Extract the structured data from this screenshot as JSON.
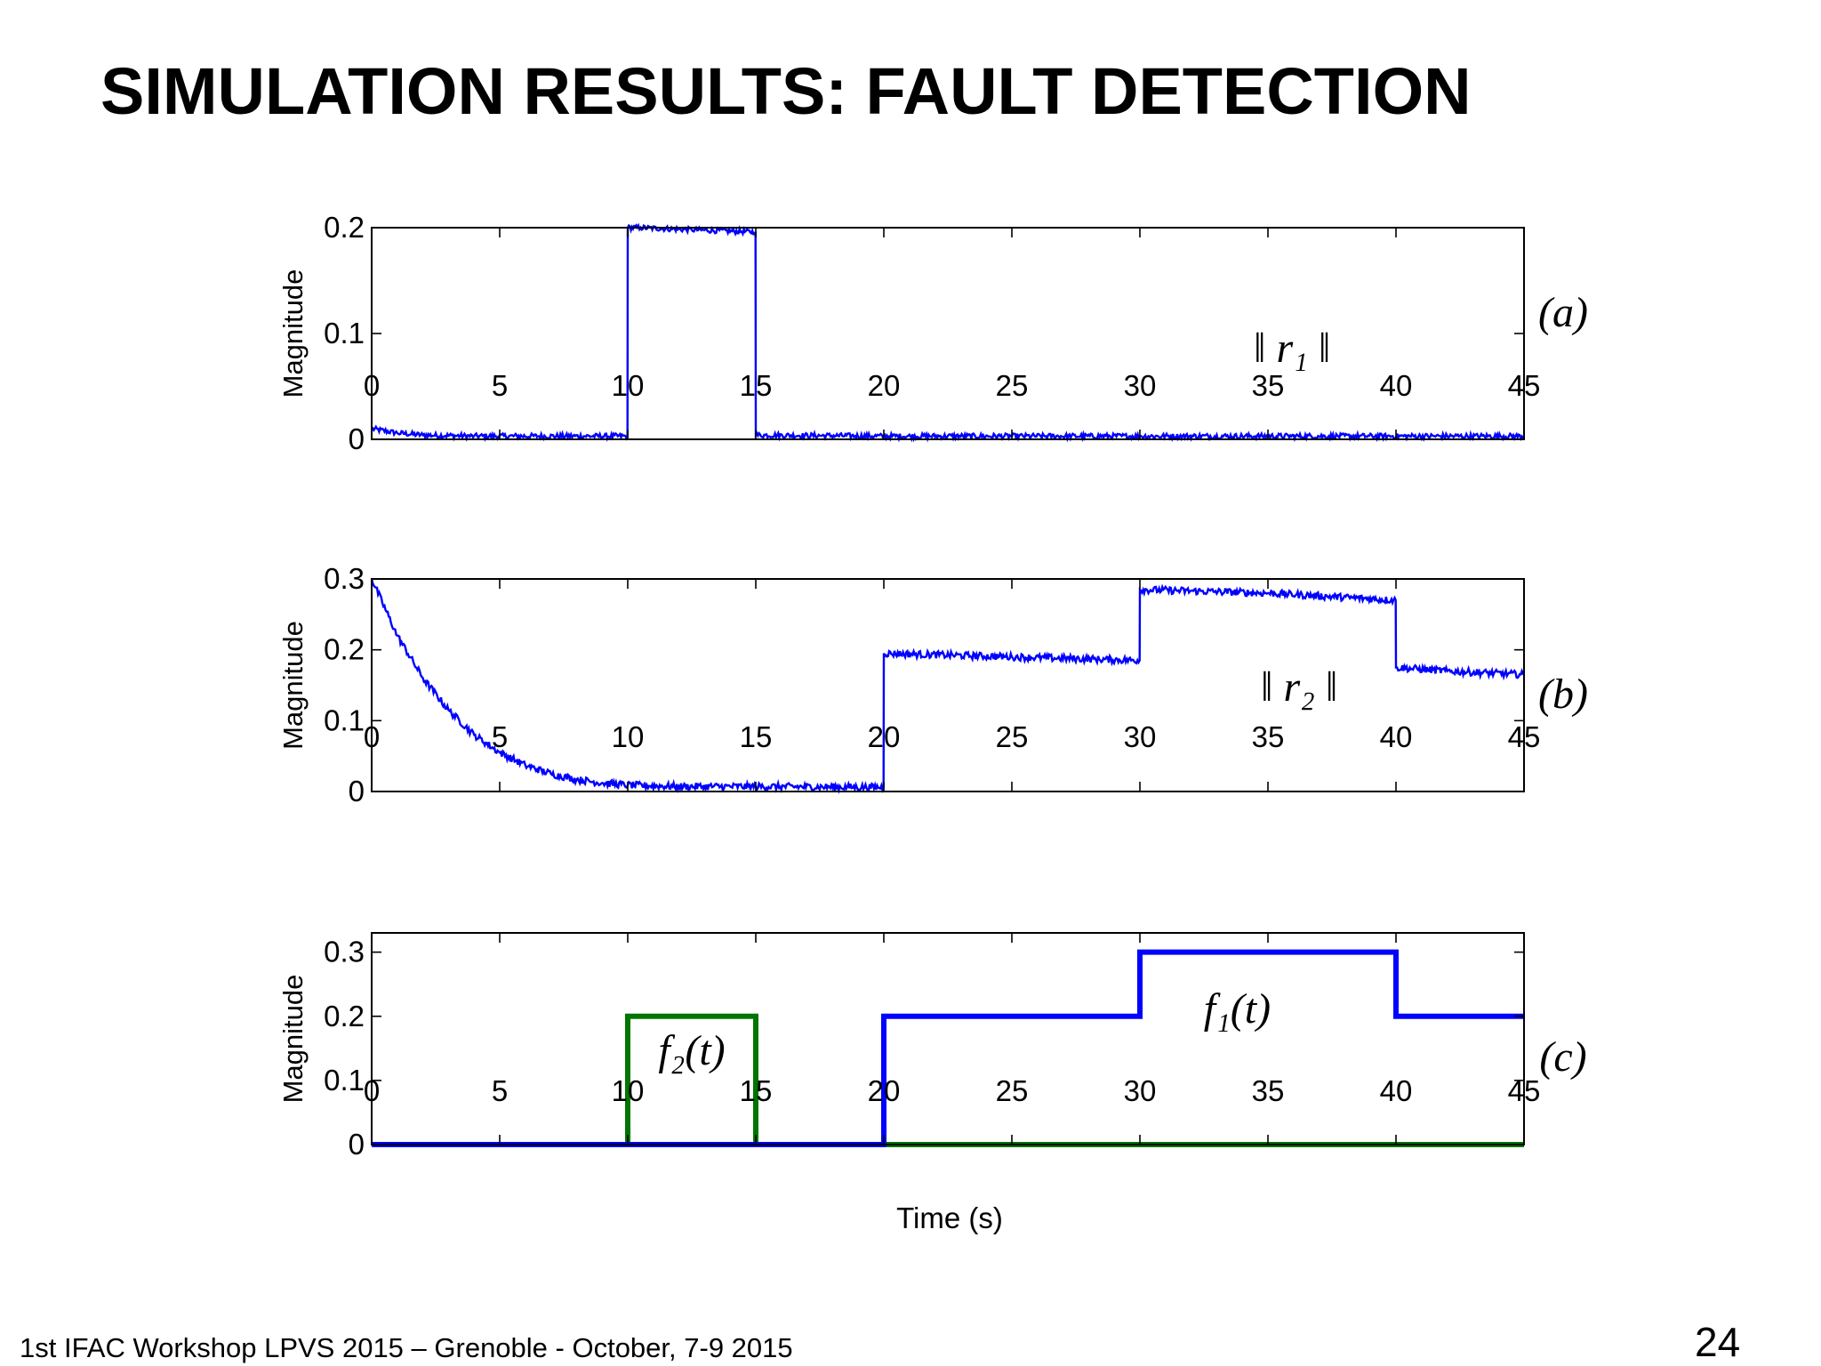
{
  "slide": {
    "title": "SIMULATION RESULTS: FAULT DETECTION",
    "footer": "1st IFAC Workshop LPVS 2015 – Grenoble - October, 7-9 2015",
    "page_number": "24"
  },
  "chart_data": [
    {
      "type": "line",
      "panel_label": "(a)",
      "annotation": "‖ r₁ ‖",
      "ylabel": "Magnitude",
      "xlabel": "",
      "xlim": [
        0,
        45
      ],
      "ylim": [
        0,
        0.2
      ],
      "xticks": [
        0,
        5,
        10,
        15,
        20,
        25,
        30,
        35,
        40,
        45
      ],
      "yticks": [
        0,
        0.1,
        0.2
      ],
      "series": [
        {
          "color": "#0000ff",
          "x": [
            0,
            1,
            2,
            4,
            9.99,
            10,
            10.5,
            12.5,
            14.99,
            15,
            20,
            30,
            45
          ],
          "y": [
            0.01,
            0.006,
            0.004,
            0.003,
            0.003,
            0.2,
            0.2,
            0.198,
            0.196,
            0.004,
            0.003,
            0.003,
            0.003
          ]
        }
      ]
    },
    {
      "type": "line",
      "panel_label": "(b)",
      "annotation": "‖ r₂ ‖",
      "ylabel": "Magnitude",
      "xlabel": "",
      "xlim": [
        0,
        45
      ],
      "ylim": [
        0,
        0.3
      ],
      "xticks": [
        0,
        5,
        10,
        15,
        20,
        25,
        30,
        35,
        40,
        45
      ],
      "yticks": [
        0,
        0.1,
        0.2,
        0.3
      ],
      "series": [
        {
          "color": "#0000ff",
          "x": [
            0,
            1,
            2,
            3,
            4,
            5,
            6,
            7,
            8,
            9,
            10,
            12,
            15,
            19.99,
            20,
            25,
            29.99,
            30,
            35,
            39.99,
            40,
            42,
            45
          ],
          "y": [
            0.3,
            0.22,
            0.16,
            0.115,
            0.08,
            0.055,
            0.037,
            0.025,
            0.017,
            0.012,
            0.009,
            0.007,
            0.007,
            0.006,
            0.195,
            0.19,
            0.185,
            0.285,
            0.28,
            0.27,
            0.175,
            0.17,
            0.165
          ]
        }
      ]
    },
    {
      "type": "line",
      "panel_label": "(c)",
      "ylabel": "Magnitude",
      "xlabel": "Time (s)",
      "xlim": [
        0,
        45
      ],
      "ylim": [
        0,
        0.33
      ],
      "xticks": [
        0,
        5,
        10,
        15,
        20,
        25,
        30,
        35,
        40,
        45
      ],
      "yticks": [
        0,
        0.1,
        0.2,
        0.3
      ],
      "annotations": [
        {
          "text": "f₂(t)",
          "x": 12.5,
          "y": 0.125
        },
        {
          "text": "f₁(t)",
          "x": 33.8,
          "y": 0.19
        }
      ],
      "series": [
        {
          "name": "f1(t)",
          "color": "#0000ff",
          "x": [
            0,
            20,
            20,
            30,
            30,
            40,
            40,
            45
          ],
          "y": [
            0,
            0,
            0.2,
            0.2,
            0.3,
            0.3,
            0.2,
            0.2
          ]
        },
        {
          "name": "f2(t)",
          "color": "#007500",
          "x": [
            0,
            10,
            10,
            15,
            15,
            45
          ],
          "y": [
            0,
            0,
            0.2,
            0.2,
            0,
            0
          ]
        }
      ]
    }
  ]
}
